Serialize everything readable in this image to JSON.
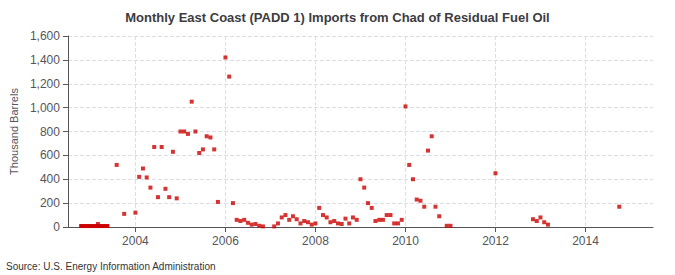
{
  "chart_data": {
    "type": "scatter",
    "title": "Monthly East Coast (PADD 1) Imports from Chad of Residual Fuel Oil",
    "ylabel": "Thousand Barrels",
    "annotations": [
      "Source: U.S. Energy Information Administration"
    ],
    "xlim": [
      2002.5,
      2015.5
    ],
    "xticks": [
      2004,
      2006,
      2008,
      2010,
      2012,
      2014
    ],
    "ylim": [
      0,
      1600
    ],
    "yticks": [
      0,
      200,
      400,
      600,
      800,
      {
        "value": 1000,
        "label": "1,000"
      },
      {
        "value": 1200,
        "label": "1,200"
      },
      {
        "value": 1400,
        "label": "1,400"
      },
      {
        "value": 1600,
        "label": "1,600"
      }
    ],
    "grid": true,
    "series": [
      {
        "type": "line",
        "color": "#cc0000",
        "line_style": "solid",
        "x": [
          2002.75,
          2003.42
        ],
        "values": [
          8,
          8
        ]
      },
      {
        "type": "scatter",
        "color": "#cc0000",
        "marker": "square",
        "x": [
          2003.167,
          2003.583,
          2003.75,
          2004.0,
          2004.083,
          2004.167,
          2004.25,
          2004.333,
          2004.417,
          2004.5,
          2004.583,
          2004.667,
          2004.75,
          2004.833,
          2004.917,
          2005.0,
          2005.083,
          2005.167,
          2005.25,
          2005.333,
          2005.417,
          2005.5,
          2005.583,
          2005.667,
          2005.75,
          2005.833,
          2006.0,
          2006.083,
          2006.167,
          2006.25,
          2006.333,
          2006.417,
          2006.5,
          2006.583,
          2006.667,
          2006.75,
          2006.833,
          2007.083,
          2007.167,
          2007.25,
          2007.333,
          2007.417,
          2007.5,
          2007.583,
          2007.667,
          2007.75,
          2007.833,
          2007.917,
          2008.0,
          2008.083,
          2008.167,
          2008.25,
          2008.333,
          2008.417,
          2008.5,
          2008.583,
          2008.667,
          2008.75,
          2008.833,
          2008.917,
          2009.0,
          2009.083,
          2009.167,
          2009.25,
          2009.333,
          2009.417,
          2009.5,
          2009.583,
          2009.667,
          2009.75,
          2009.833,
          2009.917,
          2010.0,
          2010.083,
          2010.167,
          2010.25,
          2010.333,
          2010.417,
          2010.5,
          2010.583,
          2010.667,
          2010.75,
          2010.917,
          2011.0,
          2012.0,
          2012.833,
          2012.917,
          2013.0,
          2013.083,
          2013.167,
          2014.75
        ],
        "values": [
          25,
          520,
          110,
          120,
          420,
          490,
          415,
          330,
          670,
          250,
          670,
          320,
          250,
          630,
          240,
          800,
          800,
          780,
          1050,
          800,
          620,
          650,
          760,
          750,
          650,
          210,
          1420,
          1260,
          200,
          60,
          50,
          60,
          35,
          20,
          25,
          10,
          5,
          5,
          30,
          80,
          100,
          60,
          90,
          65,
          30,
          50,
          40,
          20,
          30,
          160,
          100,
          80,
          40,
          50,
          30,
          25,
          70,
          30,
          80,
          60,
          400,
          330,
          200,
          160,
          50,
          60,
          60,
          100,
          100,
          30,
          30,
          60,
          1010,
          520,
          400,
          230,
          220,
          170,
          640,
          760,
          170,
          90,
          10,
          10,
          450,
          65,
          50,
          80,
          40,
          20,
          170
        ]
      }
    ]
  }
}
